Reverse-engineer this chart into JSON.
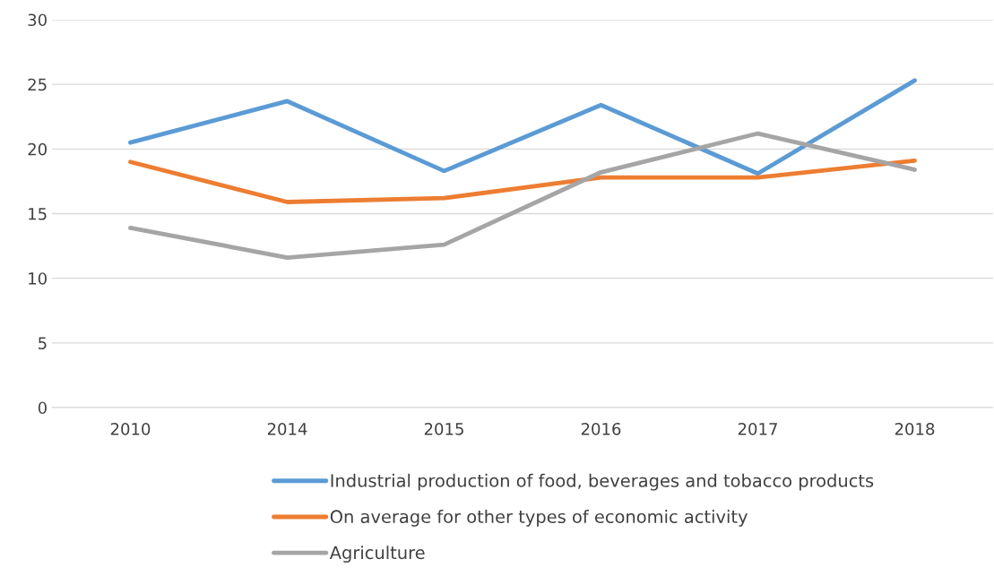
{
  "chart_data": {
    "type": "line",
    "categories": [
      "2010",
      "2014",
      "2015",
      "2016",
      "2017",
      "2018"
    ],
    "series": [
      {
        "name": "Industrial production of food, beverages and tobacco products",
        "color": "#5b9bd5",
        "values": [
          20.5,
          23.7,
          18.3,
          23.4,
          18.1,
          25.3
        ]
      },
      {
        "name": "On average for other types of economic activity",
        "color": "#ed7d31",
        "values": [
          19.0,
          15.9,
          16.2,
          17.8,
          17.8,
          19.1
        ]
      },
      {
        "name": "Agriculture",
        "color": "#a5a5a5",
        "values": [
          13.9,
          11.6,
          12.6,
          18.2,
          21.2,
          18.4
        ]
      }
    ],
    "ylim": [
      0,
      30
    ],
    "yticks": [
      0,
      5,
      10,
      15,
      20,
      25,
      30
    ],
    "grid": "y",
    "legend": "bottom",
    "marker": "none",
    "line_style": "solid"
  }
}
